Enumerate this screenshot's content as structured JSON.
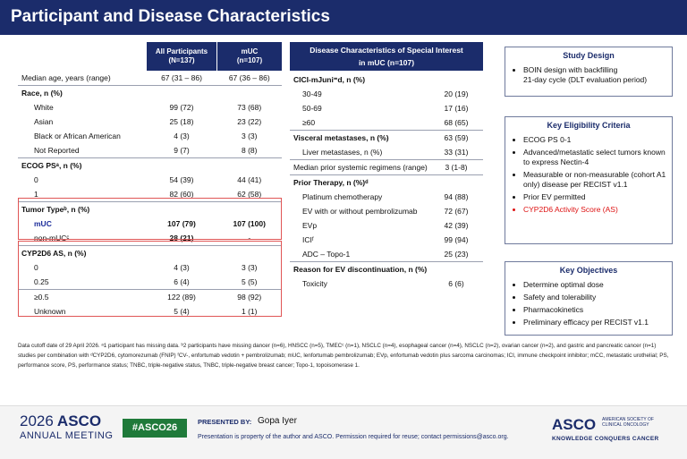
{
  "header": {
    "title": "Participant and Disease Characteristics"
  },
  "table1": {
    "col1": "All Participants\n(N=137)",
    "col2": "mUC\n(n=107)",
    "rows": {
      "age": {
        "label": "Median age, years (range)",
        "all": "67 (31 – 86)",
        "muc": "67 (36 – 86)"
      },
      "race": {
        "label": "Race, n (%)"
      },
      "white": {
        "label": "White",
        "all": "99 (72)",
        "muc": "73 (68)"
      },
      "asian": {
        "label": "Asian",
        "all": "25 (18)",
        "muc": "23 (22)"
      },
      "black": {
        "label": "Black or African American",
        "all": "4 (3)",
        "muc": "3 (3)"
      },
      "notrep": {
        "label": "Not Reported",
        "all": "9 (7)",
        "muc": "8 (8)"
      },
      "ecog": {
        "label": "ECOG PSᵃ, n (%)"
      },
      "ecog0": {
        "label": "0",
        "all": "54 (39)",
        "muc": "44 (41)"
      },
      "ecog1": {
        "label": "1",
        "all": "82 (60)",
        "muc": "62 (58)"
      },
      "tumor": {
        "label": "Tumor Typeᵇ, n (%)"
      },
      "muc": {
        "label": "mUC",
        "all": "107 (79)",
        "muc": "107 (100)"
      },
      "nonmuc": {
        "label": "non-mUCᶜ",
        "all": "28 (21)",
        "muc": "-"
      },
      "cyp": {
        "label": "CYP2D6 AS, n (%)"
      },
      "cyp0": {
        "label": "0",
        "all": "4 (3)",
        "muc": "3 (3)"
      },
      "cyp25": {
        "label": "0.25",
        "all": "6 (4)",
        "muc": "5 (5)"
      },
      "cyp05": {
        "label": "≥0.5",
        "all": "122 (89)",
        "muc": "98 (92)"
      },
      "unk": {
        "label": "Unknown",
        "all": "5 (4)",
        "muc": "1 (1)"
      }
    }
  },
  "table2": {
    "header": "Disease Characteristics of Special Interest\nin mUC (n=107)",
    "rows": {
      "cici": {
        "label": "CICI-mJuni⁼d, n (%)"
      },
      "c1": {
        "label": "30-49",
        "val": "20 (19)"
      },
      "c2": {
        "label": "50-69",
        "val": "17 (16)"
      },
      "c3": {
        "label": "≥60",
        "val": "68 (65)"
      },
      "visc": {
        "label": "Visceral metastases, n (%)",
        "val": "63 (59)"
      },
      "liver": {
        "label": "Liver metastases, n (%)",
        "val": "33 (31)"
      },
      "prior": {
        "label": "Median prior systemic regimens (range)",
        "val": "3 (1-8)"
      },
      "pt": {
        "label": "Prior Therapy, n (%)ᵈ"
      },
      "plat": {
        "label": "Platinum chemotherapy",
        "val": "94 (88)"
      },
      "ev": {
        "label": "EV with or without pembrolizumab",
        "val": "72 (67)"
      },
      "evp": {
        "label": "EVp",
        "val": "42 (39)"
      },
      "ici": {
        "label": "ICIᶠ",
        "val": "99 (94)"
      },
      "adc": {
        "label": "ADC – Topo-1",
        "val": "25 (23)"
      },
      "reason": {
        "label": "Reason for EV discontinuation, n (%)"
      },
      "tox": {
        "label": "Toxicity",
        "val": "6 (6)"
      }
    }
  },
  "studyDesign": {
    "title": "Study Design",
    "items": [
      "BOIN design with backfilling\n21-day cycle (DLT evaluation period)"
    ]
  },
  "eligibility": {
    "title": "Key Eligibility Criteria",
    "items": [
      "ECOG PS 0-1",
      "Advanced/metastatic select tumors known to express Nectin-4",
      "Measurable or non-measurable (cohort A1 only) disease per RECIST v1.1",
      "Prior EV permitted",
      "CYP2D6 Activity Score (AS)"
    ],
    "highlightColor": "#d11111"
  },
  "objectives": {
    "title": "Key Objectives",
    "items": [
      "Determine optimal dose",
      "Safety and tolerability",
      "Pharmacokinetics",
      "Preliminary efficacy per RECIST v1.1"
    ]
  },
  "footnote": "Data cutoff date of 29 April 2026. ᵃ1 participant has missing data. ᵇ2 participants have missing dancer (n=6), HNSCC (n=5), TMECᶜ (n=1), NSCLC (n=4), esophageal cancer (n=4), NSCLC (n=2), ovarian cancer (n=2), and gastric and pancreatic cancer (n=1) studies per combination with ᵈCYP2D6, cytomorezumab (FNIP) ᶠCV-, enfortumab vedotin + pembrolizumab; mUC, lenfortumab pembrolizumab; EVp, enfortumab vedotin plus sarcoma carcinomas; ICI, immune checkpoint inhibitor; mCC, metastatic urothelial; PS, performance score, PS, performance status; TNBC, triple-negative status, TNBC, triple-negative breast cancer; Topo-1, topoisomerase 1.",
  "bottom": {
    "asco_year": "2026",
    "asco_name": "ASCO",
    "annual": "ANNUAL MEETING",
    "hashtag": "#ASCO26",
    "presented_by": "PRESENTED BY:",
    "presenter": "Gopa Iyer",
    "notice": "Presentation is property of the author and ASCO. Permission required for reuse; contact permissions@asco.org.",
    "logo": "ASCO",
    "logo_tag": "AMERICAN SOCIETY OF CLINICAL ONCOLOGY",
    "logo_sub": "KNOWLEDGE CONQUERS CANCER",
    "brandColor": "#1b2c6b",
    "hashtagColor": "#1f7a3a"
  }
}
